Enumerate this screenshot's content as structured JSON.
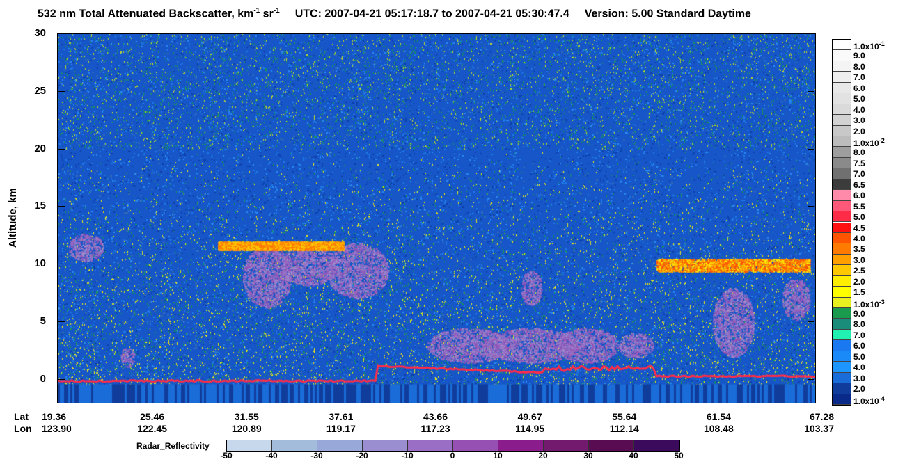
{
  "title": {
    "main": "532 nm Total Attenuated Backscatter, km",
    "sup1": "-1",
    "sr": " sr",
    "sup2": "-1",
    "utc": "UTC:  2007-04-21 05:17:18.7  to  2007-04-21 05:30:47.4",
    "version": "Version: 5.00  Standard  Daytime"
  },
  "chart_data": {
    "type": "heatmap",
    "ylabel": "Altitude, km",
    "ylim": [
      -2,
      30
    ],
    "y_ticks": [
      "30",
      "25",
      "20",
      "15",
      "10",
      "5",
      "0"
    ],
    "x_rows": {
      "lat_label": "Lat",
      "lon_label": "Lon",
      "lat": [
        "19.36",
        "25.46",
        "31.55",
        "37.61",
        "43.66",
        "49.67",
        "55.64",
        "61.54",
        "67.28"
      ],
      "lon": [
        "123.90",
        "122.45",
        "120.89",
        "119.17",
        "117.23",
        "114.95",
        "112.14",
        "108.48",
        "103.37"
      ]
    },
    "colorbar": {
      "labels": [
        {
          "m": "1.0x10",
          "e": "-1"
        },
        {
          "m": "9.0"
        },
        {
          "m": "8.0"
        },
        {
          "m": "7.0"
        },
        {
          "m": "6.0"
        },
        {
          "m": "5.0"
        },
        {
          "m": "4.0"
        },
        {
          "m": "3.0"
        },
        {
          "m": "2.0"
        },
        {
          "m": "1.0x10",
          "e": "-2"
        },
        {
          "m": "8.0"
        },
        {
          "m": "7.5"
        },
        {
          "m": "7.0"
        },
        {
          "m": "6.5"
        },
        {
          "m": "6.0"
        },
        {
          "m": "5.5"
        },
        {
          "m": "5.0"
        },
        {
          "m": "4.5"
        },
        {
          "m": "4.0"
        },
        {
          "m": "3.5"
        },
        {
          "m": "3.0"
        },
        {
          "m": "2.5"
        },
        {
          "m": "2.0"
        },
        {
          "m": "1.5"
        },
        {
          "m": "1.0x10",
          "e": "-3"
        },
        {
          "m": "9.0"
        },
        {
          "m": "8.0"
        },
        {
          "m": "7.0"
        },
        {
          "m": "6.0"
        },
        {
          "m": "5.0"
        },
        {
          "m": "4.0"
        },
        {
          "m": "3.0"
        },
        {
          "m": "2.0"
        },
        {
          "m": "1.0x10",
          "e": "-4"
        }
      ],
      "colors": [
        "#ffffff",
        "#fafafa",
        "#f4f4f4",
        "#eeeeee",
        "#e8e8e8",
        "#e2e2e2",
        "#dadada",
        "#d2d2d2",
        "#c8c8c8",
        "#bcbcbc",
        "#9e9e9e",
        "#8a8a8a",
        "#707070",
        "#3c3c3c",
        "#ff8aaa",
        "#ff5878",
        "#ff2c48",
        "#ff1010",
        "#ff5500",
        "#ff7a00",
        "#ffa000",
        "#ffc800",
        "#ffee00",
        "#ffff00",
        "#e8f020",
        "#199a4c",
        "#1a8c7a",
        "#20f0b0",
        "#1a78f0",
        "#1a8af8",
        "#1e96ff",
        "#1a6cd8",
        "#103c9c",
        "#0a2a8a"
      ]
    },
    "radar_reflectivity": {
      "label": "Radar_Reflectivity",
      "ticks": [
        "-50",
        "-40",
        "-30",
        "-20",
        "-10",
        "0",
        "10",
        "20",
        "30",
        "40",
        "50"
      ],
      "colors": [
        "#c8d8ec",
        "#a4bcdc",
        "#98a8d8",
        "#9a8ed0",
        "#9a6ec4",
        "#9650b4",
        "#8a1c8c",
        "#741a6e",
        "#5a0c52",
        "#3c0a5c",
        "#3a0a90"
      ]
    }
  }
}
